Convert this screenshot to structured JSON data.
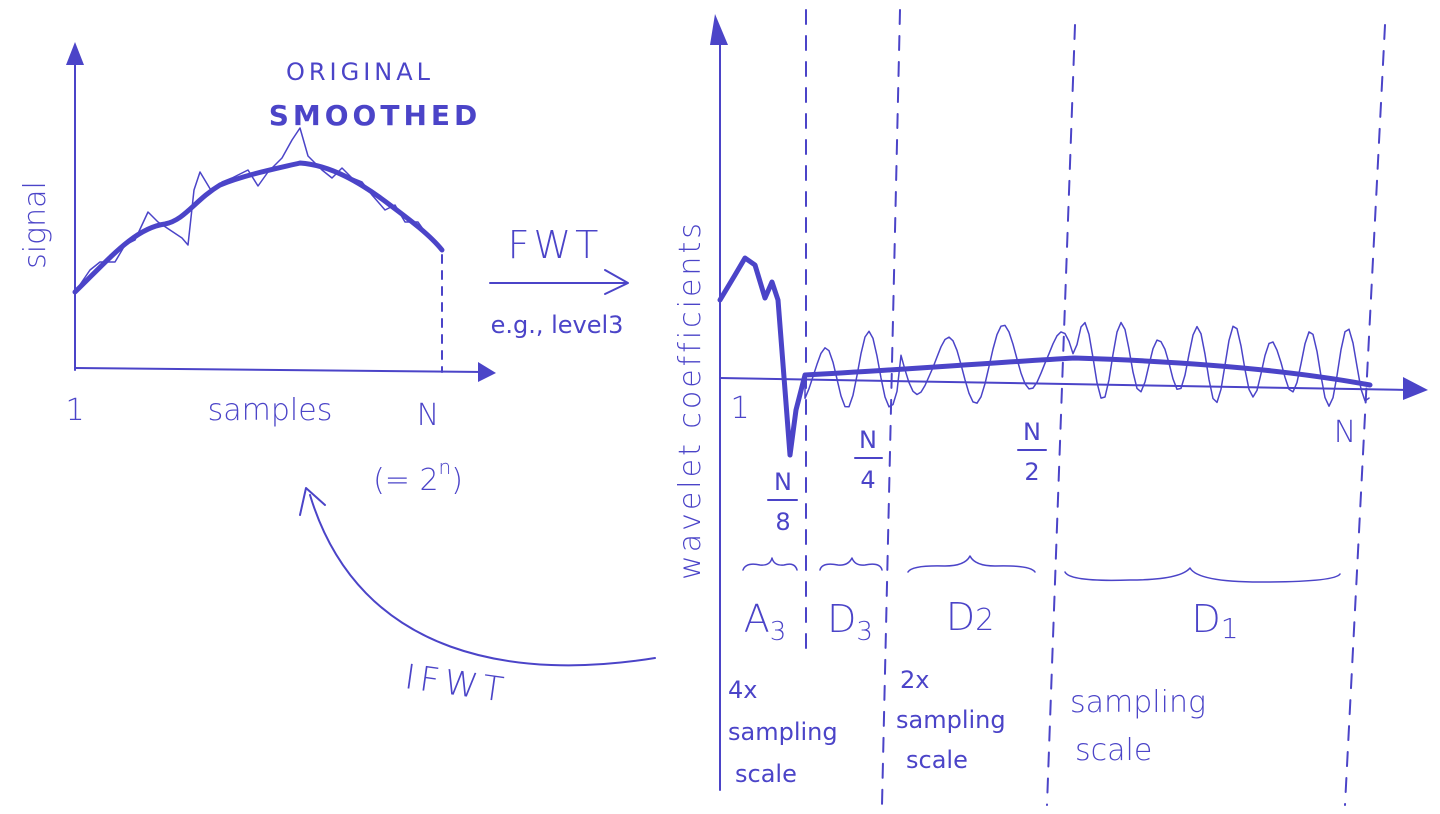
{
  "left_plot": {
    "legend": [
      "ORIGINAL",
      "SMOOTHED"
    ],
    "y_label": "signal",
    "x_label": "samples",
    "x_start": "1",
    "x_end": "N",
    "x_end_note": {
      "open": "(= 2",
      "sup": "n",
      "close": ")"
    }
  },
  "forward": {
    "label": "FWT",
    "note": "e.g., level3"
  },
  "inverse": {
    "label": "IFWT"
  },
  "right_plot": {
    "y_label": "wavelet coefficients",
    "x_start": "1",
    "x_end": "N",
    "markers": [
      {
        "num": "N",
        "den": "8"
      },
      {
        "num": "N",
        "den": "4"
      },
      {
        "num": "N",
        "den": "2"
      }
    ],
    "bands": [
      {
        "letter": "A",
        "sub": "3",
        "note": [
          "4x",
          "sampling",
          "scale"
        ]
      },
      {
        "letter": "D",
        "sub": "3"
      },
      {
        "letter": "D",
        "sub": "2",
        "note": [
          "2x",
          "sampling",
          "scale"
        ]
      },
      {
        "letter": "D",
        "sub": "1",
        "note": [
          "sampling",
          "scale"
        ]
      }
    ]
  }
}
